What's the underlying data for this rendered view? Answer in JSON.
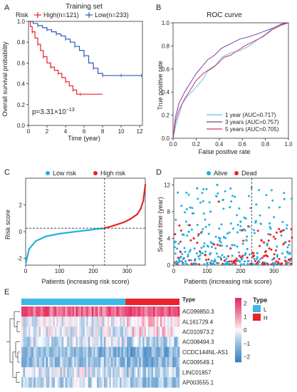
{
  "panels": {
    "a": {
      "letter": "A",
      "title": "Training set",
      "legend_label": "Risk",
      "legend_high": "High(n=121)",
      "legend_low": "Low(n=233)",
      "xlabel": "Time (year)",
      "ylabel": "Overall survival probability",
      "pvalue": "p=3.31×10",
      "pvalue_exp": "−13",
      "colors": {
        "high": "#e8232a",
        "low": "#2d59b3"
      }
    },
    "b": {
      "letter": "B",
      "title": "ROC curve",
      "xlabel": "False positive rate",
      "ylabel": "True positive rate",
      "legend": [
        "1 year (AUC=0.717)",
        "3 years (AUC=0.757)",
        "5 years (AUC=0.705)"
      ],
      "colors": [
        "#5bc6e8",
        "#7b3fa8",
        "#d6306a"
      ]
    },
    "c": {
      "letter": "C",
      "xlabel": "Patients (increasing risk score)",
      "ylabel": "Risk score",
      "legend_low": "Low risk",
      "legend_high": "High risk",
      "colors": {
        "low": "#1fb0e0",
        "high": "#e8232a"
      }
    },
    "d": {
      "letter": "D",
      "xlabel": "Patients (increasing risk score)",
      "ylabel": "Survival time (year)",
      "legend_alive": "Alive",
      "legend_dead": "Dead",
      "colors": {
        "alive": "#1fb0e0",
        "dead": "#e8232a"
      }
    },
    "e": {
      "letter": "E",
      "type_label": "Type",
      "legend_title": "Type",
      "legend_L": "L",
      "legend_H": "H",
      "colors": {
        "L": "#3db8e6",
        "H": "#e8232a",
        "scale_high": "#e52e63",
        "scale_mid": "#ffffff",
        "scale_low": "#3a83c2"
      }
    }
  },
  "chart_data": [
    {
      "type": "line",
      "title": "Training set",
      "xlabel": "Time (year)",
      "ylabel": "Overall survival probability",
      "xlim": [
        0,
        12.3
      ],
      "ylim": [
        0,
        1
      ],
      "xticks": [
        0,
        2,
        4,
        6,
        8,
        10,
        12
      ],
      "yticks": [
        0.0,
        0.2,
        0.4,
        0.6,
        0.8,
        1.0
      ],
      "series": [
        {
          "name": "High(n=121)",
          "x": [
            0,
            0.2,
            0.4,
            0.7,
            1.0,
            1.3,
            1.6,
            2.0,
            2.4,
            2.8,
            3.2,
            3.6,
            4.0,
            4.4,
            4.8,
            5.2,
            5.6,
            8.0
          ],
          "y": [
            1.0,
            0.95,
            0.9,
            0.84,
            0.78,
            0.72,
            0.66,
            0.6,
            0.56,
            0.53,
            0.5,
            0.46,
            0.42,
            0.38,
            0.34,
            0.3,
            0.3,
            0.3
          ]
        },
        {
          "name": "Low(n=233)",
          "x": [
            0,
            0.5,
            1.0,
            1.5,
            2.0,
            2.5,
            3.0,
            3.5,
            4.0,
            4.5,
            5.0,
            5.5,
            6.0,
            6.5,
            7.0,
            7.5,
            8.0,
            9.0,
            10.0,
            11.0,
            12.2
          ],
          "y": [
            1.0,
            0.98,
            0.96,
            0.94,
            0.92,
            0.9,
            0.88,
            0.86,
            0.83,
            0.8,
            0.76,
            0.72,
            0.67,
            0.6,
            0.55,
            0.5,
            0.48,
            0.48,
            0.48,
            0.48,
            0.48
          ]
        }
      ],
      "annotation": "p=3.31×10−13"
    },
    {
      "type": "line",
      "title": "ROC curve",
      "xlabel": "False positive rate",
      "ylabel": "True positive rate",
      "xlim": [
        0,
        1
      ],
      "ylim": [
        0,
        1
      ],
      "xticks": [
        0.0,
        0.2,
        0.4,
        0.6,
        0.8,
        1.0
      ],
      "yticks": [
        0.0,
        0.2,
        0.4,
        0.6,
        0.8,
        1.0
      ],
      "series": [
        {
          "name": "1 year (AUC=0.717)",
          "x": [
            0,
            0.02,
            0.05,
            0.08,
            0.12,
            0.18,
            0.25,
            0.3,
            0.36,
            0.42,
            0.5,
            0.58,
            0.66,
            0.74,
            0.8,
            0.86,
            0.92,
            1.0
          ],
          "y": [
            0,
            0.1,
            0.2,
            0.3,
            0.36,
            0.42,
            0.5,
            0.58,
            0.62,
            0.7,
            0.74,
            0.76,
            0.8,
            0.86,
            0.9,
            0.95,
            0.98,
            1.0
          ]
        },
        {
          "name": "3 years (AUC=0.757)",
          "x": [
            0,
            0.02,
            0.05,
            0.1,
            0.15,
            0.2,
            0.25,
            0.3,
            0.36,
            0.42,
            0.5,
            0.58,
            0.66,
            0.72,
            0.8,
            0.88,
            0.94,
            1.0
          ],
          "y": [
            0,
            0.18,
            0.3,
            0.4,
            0.48,
            0.56,
            0.62,
            0.68,
            0.72,
            0.78,
            0.82,
            0.86,
            0.88,
            0.9,
            0.93,
            0.96,
            0.99,
            1.0
          ]
        },
        {
          "name": "5 years (AUC=0.705)",
          "x": [
            0,
            0.02,
            0.05,
            0.1,
            0.15,
            0.2,
            0.26,
            0.32,
            0.38,
            0.44,
            0.5,
            0.56,
            0.62,
            0.7,
            0.78,
            0.86,
            0.94,
            1.0
          ],
          "y": [
            0,
            0.14,
            0.24,
            0.34,
            0.42,
            0.5,
            0.56,
            0.6,
            0.64,
            0.7,
            0.72,
            0.76,
            0.8,
            0.84,
            0.88,
            0.94,
            0.98,
            1.0
          ]
        }
      ]
    },
    {
      "type": "scatter",
      "xlabel": "Patients (increasing risk score)",
      "ylabel": "Risk score",
      "xlim": [
        0,
        354
      ],
      "ylim": [
        -2.5,
        4
      ],
      "xticks": [
        0,
        100,
        200,
        300
      ],
      "yticks": [
        -2,
        0,
        2
      ],
      "series": [
        {
          "name": "Low risk",
          "x": [
            1,
            10,
            30,
            60,
            100,
            140,
            180,
            210,
            233
          ],
          "y": [
            -2.3,
            -1.3,
            -0.7,
            -0.35,
            -0.15,
            -0.02,
            0.1,
            0.2,
            0.25
          ]
        },
        {
          "name": "High risk",
          "x": [
            234,
            260,
            290,
            310,
            330,
            340,
            348,
            354
          ],
          "y": [
            0.27,
            0.45,
            0.7,
            0.95,
            1.3,
            1.7,
            2.3,
            3.5
          ]
        }
      ]
    },
    {
      "type": "scatter",
      "xlabel": "Patients (increasing risk score)",
      "ylabel": "Survival time (year)",
      "xlim": [
        0,
        354
      ],
      "ylim": [
        0,
        13
      ],
      "xticks": [
        0,
        100,
        200,
        300
      ],
      "yticks": [
        0,
        4,
        8,
        12
      ],
      "series": [
        {
          "name": "Alive",
          "x": [
            5,
            20,
            45,
            70,
            90,
            110,
            130,
            150,
            175,
            200,
            220,
            250,
            280,
            310,
            340
          ],
          "y": [
            3.5,
            2.0,
            5.0,
            11.5,
            2.8,
            8.0,
            12.0,
            4.2,
            3.0,
            6.5,
            2.4,
            1.8,
            3.2,
            1.5,
            2.0
          ]
        },
        {
          "name": "Dead",
          "x": [
            20,
            60,
            95,
            135,
            170,
            205,
            240,
            270,
            300,
            320,
            345
          ],
          "y": [
            2.0,
            4.0,
            1.5,
            9.5,
            2.5,
            5.2,
            1.4,
            3.4,
            1.0,
            5.0,
            0.8
          ]
        }
      ]
    },
    {
      "type": "heatmap",
      "rows": [
        "AC099850.3",
        "AL161729.4",
        "AC010973.2",
        "AC008494.3",
        "CCDC144NL-AS1",
        "AC009549.1",
        "LINC01857",
        "AP003555.1"
      ],
      "column_groups": [
        {
          "name": "L",
          "count": 233
        },
        {
          "name": "H",
          "count": 121
        }
      ],
      "scale_ticks": [
        2,
        1,
        0,
        -1,
        -2
      ],
      "row_mean": [
        1.6,
        -0.2,
        -0.3,
        -0.5,
        -1.1,
        -1.0,
        -0.4,
        -0.6
      ]
    }
  ]
}
